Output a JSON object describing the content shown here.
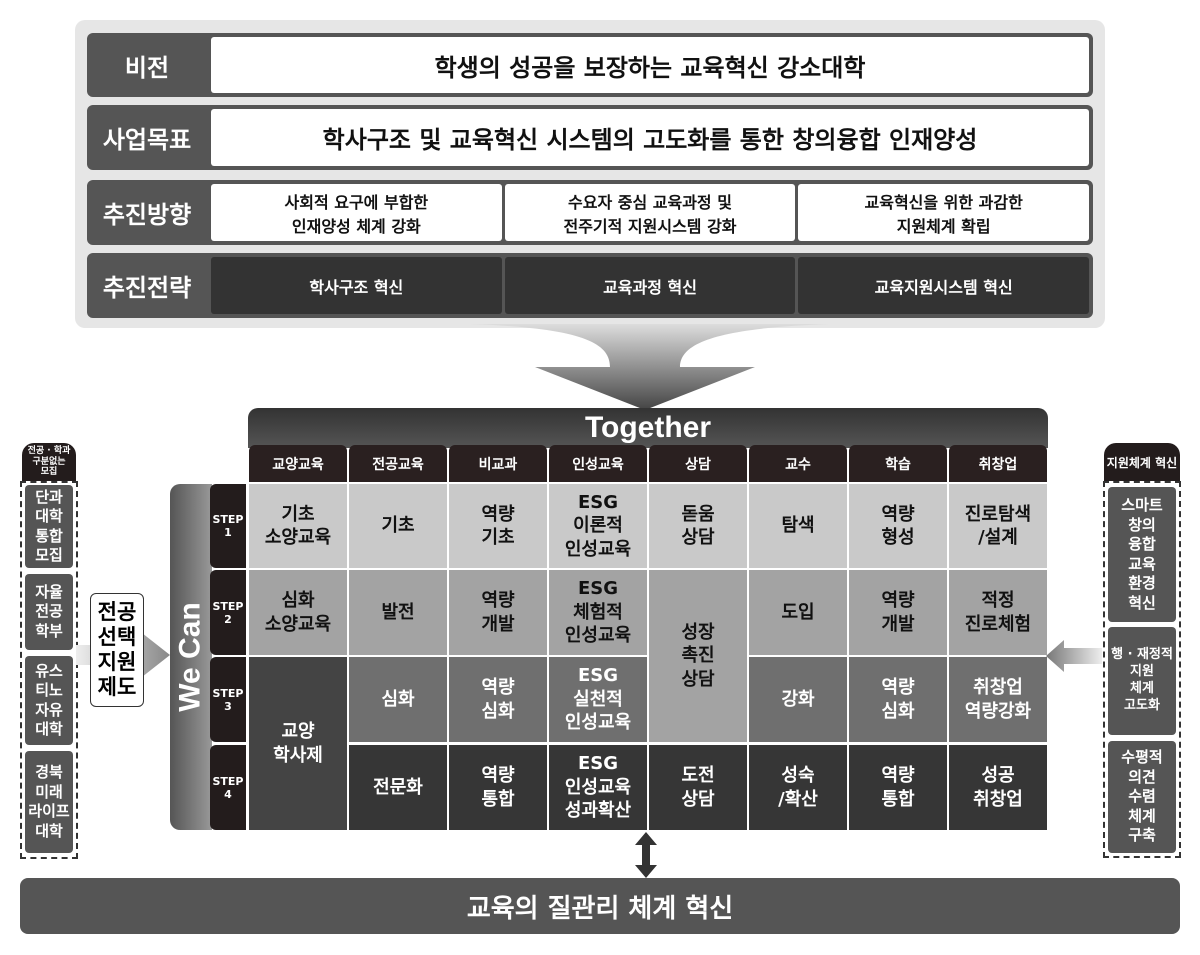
{
  "framework": {
    "rows": [
      {
        "label": "비전",
        "items": [
          "학생의 성공을 보장하는 교육혁신 강소대학"
        ]
      },
      {
        "label": "사업목표",
        "items": [
          "학사구조 및 교육혁신 시스템의 고도화를 통한 창의융합 인재양성"
        ]
      },
      {
        "label": "추진방향",
        "items": [
          "사회적 요구에 부합한\n인재양성 체계 강화",
          "수요자 중심 교육과정 및\n전주기적 지원시스템 강화",
          "교육혁신을 위한 과감한\n지원체계 확립"
        ]
      },
      {
        "label": "추진전략",
        "items": [
          "학사구조 혁신",
          "교육과정 혁신",
          "교육지원시스템 혁신"
        ]
      }
    ]
  },
  "grid": {
    "together": "Together",
    "we_can": "We Can",
    "columns": [
      "교양교육",
      "전공교육",
      "비교과",
      "인성교육",
      "상담",
      "교수",
      "학습",
      "취창업"
    ],
    "steps": [
      "STEP\n1",
      "STEP\n2",
      "STEP\n3",
      "STEP\n4"
    ],
    "cells": [
      [
        "기초\n소양교육",
        "기초",
        "역량\n기초",
        "ESG\n이론적\n인성교육",
        "돋움\n상담",
        "탐색",
        "역량\n형성",
        "진로탐색\n/설계"
      ],
      [
        "심화\n소양교육",
        "발전",
        "역량\n개발",
        "ESG\n체험적\n인성교육",
        "성장\n촉진\n상담",
        "도입",
        "역량\n개발",
        "적정\n진로체험"
      ],
      [
        "교양\n학사제",
        "심화",
        "역량\n심화",
        "ESG\n실천적\n인성교육",
        "",
        "강화",
        "역량\n심화",
        "취창업\n역량강화"
      ],
      [
        "",
        "전문화",
        "역량\n통합",
        "ESG\n인성교육\n성과확산",
        "도전\n상담",
        "성숙\n/확산",
        "역량\n통합",
        "성공\n취창업"
      ]
    ]
  },
  "left": {
    "header": "전공 · 학과\n구분없는\n모집",
    "items": [
      "단과\n대학\n통합\n모집",
      "자율\n전공\n학부",
      "유스\n티노\n자유\n대학",
      "경북\n미래\n라이프\n대학"
    ],
    "support": "전공\n선택\n지원\n제도"
  },
  "right": {
    "header": "지원체계 혁신",
    "items": [
      "스마트\n창의\n융합\n교육\n환경\n혁신",
      "행 · 재정적\n지원\n체계\n고도화",
      "수평적\n의견\n수렴\n체계\n구축"
    ]
  },
  "bottom": "교육의 질관리 체계 혁신",
  "colors": {
    "dark": "#231c1c",
    "mid": "#555555",
    "step1": "#c9c9c9",
    "step2": "#a3a3a3",
    "step3": "#6f6f6f",
    "step4": "#363636"
  }
}
